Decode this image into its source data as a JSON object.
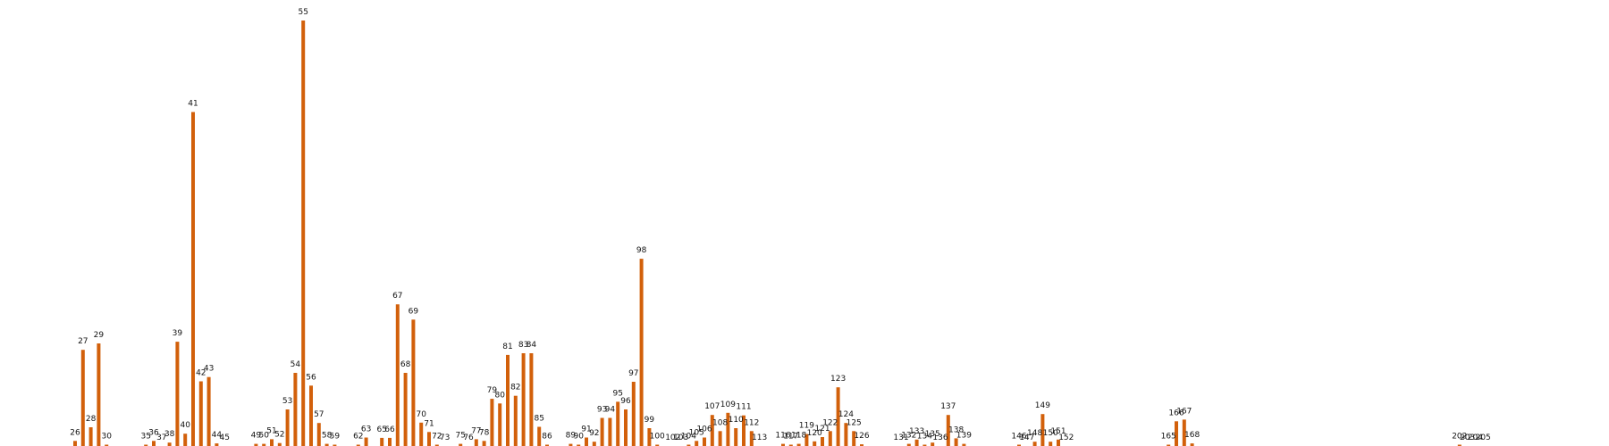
{
  "colors": {
    "bar": "#d2600b",
    "label": "#111111",
    "background": "#ffffff"
  },
  "chart_data": {
    "type": "bar",
    "title": "",
    "xlabel": "",
    "ylabel": "",
    "grid": false,
    "legend": "none",
    "ylim": [
      0,
      1.0
    ],
    "bars": [
      {
        "label": "26",
        "x": 26,
        "value": 0.012
      },
      {
        "label": "27",
        "x": 27,
        "value": 0.226
      },
      {
        "label": "28",
        "x": 28,
        "value": 0.044
      },
      {
        "label": "29",
        "x": 29,
        "value": 0.241
      },
      {
        "label": "30",
        "x": 30,
        "value": 0.003
      },
      {
        "label": "35",
        "x": 35,
        "value": 0.003
      },
      {
        "label": "36",
        "x": 36,
        "value": 0.012
      },
      {
        "label": "37",
        "x": 37,
        "value": 0.0
      },
      {
        "label": "38",
        "x": 38,
        "value": 0.008
      },
      {
        "label": "39",
        "x": 39,
        "value": 0.245
      },
      {
        "label": "40",
        "x": 40,
        "value": 0.029
      },
      {
        "label": "41",
        "x": 41,
        "value": 0.785
      },
      {
        "label": "42",
        "x": 42,
        "value": 0.152
      },
      {
        "label": "43",
        "x": 43,
        "value": 0.162
      },
      {
        "label": "44",
        "x": 44,
        "value": 0.006
      },
      {
        "label": "45",
        "x": 45,
        "value": 0.0
      },
      {
        "label": "49",
        "x": 49,
        "value": 0.005
      },
      {
        "label": "50",
        "x": 50,
        "value": 0.005
      },
      {
        "label": "51",
        "x": 51,
        "value": 0.016
      },
      {
        "label": "52",
        "x": 52,
        "value": 0.007
      },
      {
        "label": "53",
        "x": 53,
        "value": 0.086
      },
      {
        "label": "54",
        "x": 54,
        "value": 0.172
      },
      {
        "label": "55",
        "x": 55,
        "value": 1.0
      },
      {
        "label": "56",
        "x": 56,
        "value": 0.142
      },
      {
        "label": "57",
        "x": 57,
        "value": 0.054
      },
      {
        "label": "58",
        "x": 58,
        "value": 0.005
      },
      {
        "label": "59",
        "x": 59,
        "value": 0.002
      },
      {
        "label": "62",
        "x": 62,
        "value": 0.001
      },
      {
        "label": "63",
        "x": 63,
        "value": 0.02
      },
      {
        "label": "65",
        "x": 65,
        "value": 0.019
      },
      {
        "label": "66",
        "x": 66,
        "value": 0.019
      },
      {
        "label": "67",
        "x": 67,
        "value": 0.333
      },
      {
        "label": "68",
        "x": 68,
        "value": 0.172
      },
      {
        "label": "69",
        "x": 69,
        "value": 0.297
      },
      {
        "label": "70",
        "x": 70,
        "value": 0.055
      },
      {
        "label": "71",
        "x": 71,
        "value": 0.033
      },
      {
        "label": "72",
        "x": 72,
        "value": 0.002
      },
      {
        "label": "73",
        "x": 73,
        "value": 0.0
      },
      {
        "label": "75",
        "x": 75,
        "value": 0.005
      },
      {
        "label": "76",
        "x": 76,
        "value": 0.0
      },
      {
        "label": "77",
        "x": 77,
        "value": 0.016
      },
      {
        "label": "78",
        "x": 78,
        "value": 0.012
      },
      {
        "label": "79",
        "x": 79,
        "value": 0.111
      },
      {
        "label": "80",
        "x": 80,
        "value": 0.1
      },
      {
        "label": "81",
        "x": 81,
        "value": 0.214
      },
      {
        "label": "82",
        "x": 82,
        "value": 0.118
      },
      {
        "label": "83",
        "x": 83,
        "value": 0.218
      },
      {
        "label": "84",
        "x": 84,
        "value": 0.218
      },
      {
        "label": "85",
        "x": 85,
        "value": 0.045
      },
      {
        "label": "86",
        "x": 86,
        "value": 0.002
      },
      {
        "label": "89",
        "x": 89,
        "value": 0.005
      },
      {
        "label": "90",
        "x": 90,
        "value": 0.001
      },
      {
        "label": "91",
        "x": 91,
        "value": 0.02
      },
      {
        "label": "92",
        "x": 92,
        "value": 0.01
      },
      {
        "label": "93",
        "x": 93,
        "value": 0.066
      },
      {
        "label": "94",
        "x": 94,
        "value": 0.066
      },
      {
        "label": "95",
        "x": 95,
        "value": 0.104
      },
      {
        "label": "96",
        "x": 96,
        "value": 0.086
      },
      {
        "label": "97",
        "x": 97,
        "value": 0.151
      },
      {
        "label": "98",
        "x": 98,
        "value": 0.44
      },
      {
        "label": "99",
        "x": 99,
        "value": 0.042
      },
      {
        "label": "100",
        "x": 100,
        "value": 0.002
      },
      {
        "label": "102",
        "x": 102,
        "value": 0.0
      },
      {
        "label": "103",
        "x": 103,
        "value": 0.0
      },
      {
        "label": "104",
        "x": 104,
        "value": 0.003
      },
      {
        "label": "105",
        "x": 105,
        "value": 0.012
      },
      {
        "label": "106",
        "x": 106,
        "value": 0.02
      },
      {
        "label": "107",
        "x": 107,
        "value": 0.073
      },
      {
        "label": "108",
        "x": 108,
        "value": 0.035
      },
      {
        "label": "109",
        "x": 109,
        "value": 0.078
      },
      {
        "label": "110",
        "x": 110,
        "value": 0.042
      },
      {
        "label": "111",
        "x": 111,
        "value": 0.072
      },
      {
        "label": "112",
        "x": 112,
        "value": 0.035
      },
      {
        "label": "113",
        "x": 113,
        "value": 0.0
      },
      {
        "label": "116",
        "x": 116,
        "value": 0.005
      },
      {
        "label": "117",
        "x": 117,
        "value": 0.002
      },
      {
        "label": "118",
        "x": 118,
        "value": 0.005
      },
      {
        "label": "119",
        "x": 119,
        "value": 0.028
      },
      {
        "label": "120",
        "x": 120,
        "value": 0.011
      },
      {
        "label": "121",
        "x": 121,
        "value": 0.021
      },
      {
        "label": "122",
        "x": 122,
        "value": 0.035
      },
      {
        "label": "123",
        "x": 123,
        "value": 0.138
      },
      {
        "label": "124",
        "x": 124,
        "value": 0.054
      },
      {
        "label": "125",
        "x": 125,
        "value": 0.035
      },
      {
        "label": "126",
        "x": 126,
        "value": 0.004
      },
      {
        "label": "131",
        "x": 131,
        "value": 0.0
      },
      {
        "label": "132",
        "x": 132,
        "value": 0.005
      },
      {
        "label": "133",
        "x": 133,
        "value": 0.015
      },
      {
        "label": "134",
        "x": 134,
        "value": 0.003
      },
      {
        "label": "135",
        "x": 135,
        "value": 0.008
      },
      {
        "label": "136",
        "x": 136,
        "value": 0.0
      },
      {
        "label": "137",
        "x": 137,
        "value": 0.073
      },
      {
        "label": "138",
        "x": 138,
        "value": 0.018
      },
      {
        "label": "139",
        "x": 139,
        "value": 0.005
      },
      {
        "label": "146",
        "x": 146,
        "value": 0.003
      },
      {
        "label": "147",
        "x": 147,
        "value": 0.0
      },
      {
        "label": "148",
        "x": 148,
        "value": 0.01
      },
      {
        "label": "149",
        "x": 149,
        "value": 0.075
      },
      {
        "label": "150",
        "x": 150,
        "value": 0.01
      },
      {
        "label": "151",
        "x": 151,
        "value": 0.015
      },
      {
        "label": "152",
        "x": 152,
        "value": 0.0
      },
      {
        "label": "165",
        "x": 165,
        "value": 0.003
      },
      {
        "label": "166",
        "x": 166,
        "value": 0.058
      },
      {
        "label": "167",
        "x": 167,
        "value": 0.062
      },
      {
        "label": "168",
        "x": 168,
        "value": 0.006
      },
      {
        "label": "202",
        "x": 202,
        "value": 0.003
      },
      {
        "label": "203",
        "x": 203,
        "value": 0.0
      },
      {
        "label": "204",
        "x": 204,
        "value": 0.0
      },
      {
        "label": "205",
        "x": 205,
        "value": 0.0
      }
    ]
  }
}
